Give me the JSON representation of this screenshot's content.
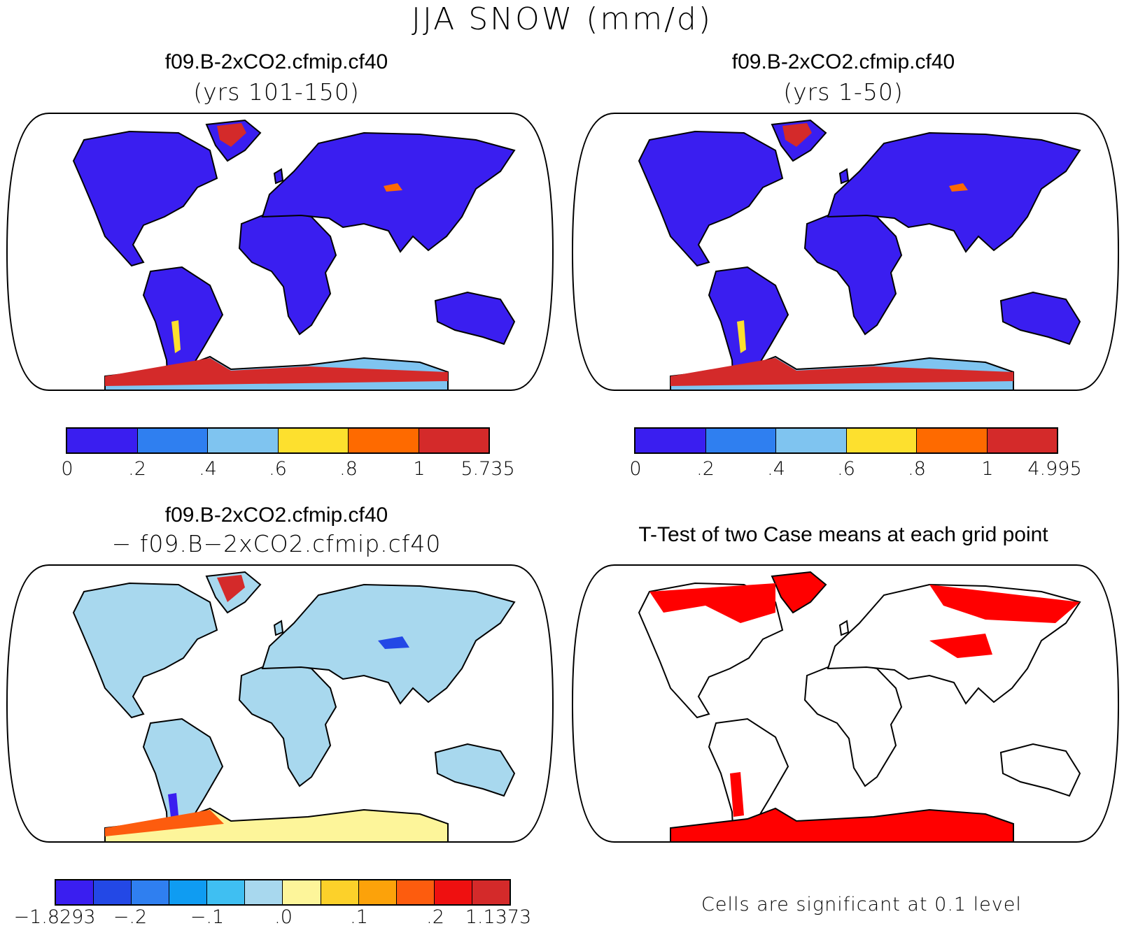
{
  "title": "JJA SNOW (mm/d)",
  "panels": [
    {
      "title": "f09.B-2xCO2.cfmip.cf40",
      "subtitle": "(yrs 101-150)",
      "colorbar": {
        "colors": [
          "#3a1ef0",
          "#2f7ff0",
          "#7fc4f0",
          "#fde02e",
          "#fe6a00",
          "#d42a2a"
        ],
        "labels": [
          "0",
          ".2",
          ".4",
          ".6",
          ".8",
          "1",
          "5.735"
        ]
      }
    },
    {
      "title": "f09.B-2xCO2.cfmip.cf40",
      "subtitle": "(yrs 1-50)",
      "colorbar": {
        "colors": [
          "#3a1ef0",
          "#2f7ff0",
          "#7fc4f0",
          "#fde02e",
          "#fe6a00",
          "#d42a2a"
        ],
        "labels": [
          "0",
          ".2",
          ".4",
          ".6",
          ".8",
          "1",
          "4.995"
        ]
      }
    },
    {
      "title": "f09.B-2xCO2.cfmip.cf40",
      "subtitle": "− f09.B−2xCO2.cfmip.cf40",
      "colorbar": {
        "colors": [
          "#3a1ef0",
          "#2348e6",
          "#2f7ff0",
          "#0f9cf2",
          "#3fbff2",
          "#a8d8ee",
          "#fdf59a",
          "#fcd12a",
          "#fca20a",
          "#fd5c0e",
          "#ef1010",
          "#d42a2a"
        ],
        "labels": [
          "−1.8293",
          "−.2",
          "−.1",
          ".0",
          ".1",
          ".2",
          "1.1373"
        ]
      }
    },
    {
      "title": "T-Test of two Case means at each grid point",
      "note": "Cells are significant at 0.1 level",
      "fill_color": "#ff0000"
    }
  ]
}
